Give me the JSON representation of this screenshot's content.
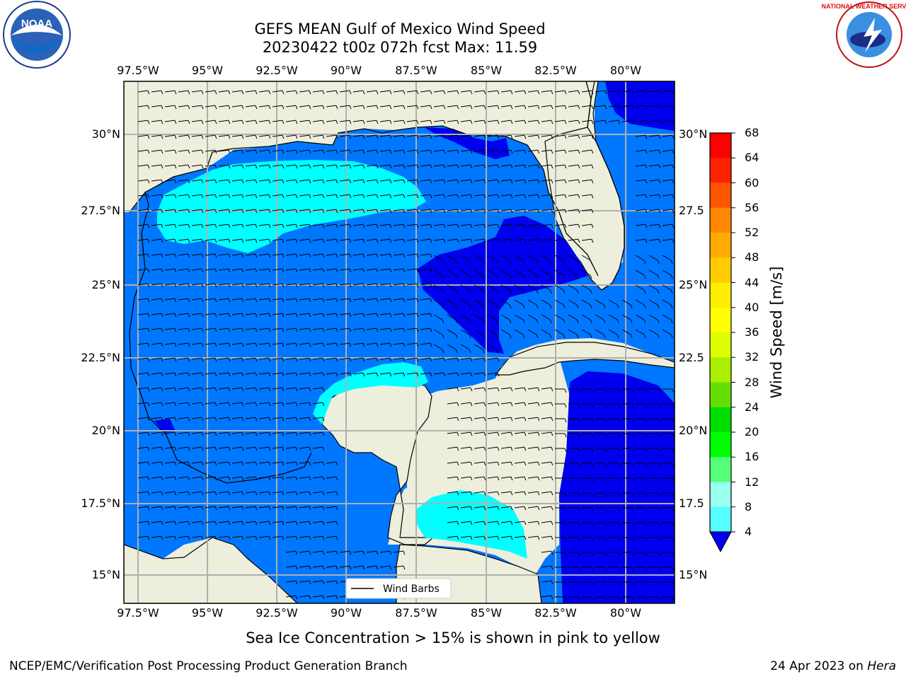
{
  "header": {
    "title_line1": "GEFS MEAN Gulf of Mexico Wind Speed",
    "title_line2": "20230422 t00z 072h fcst   Max: 11.59",
    "logo_left_text": "NOAA",
    "logo_right_text": "NATIONAL WEATHER SERVICE"
  },
  "map": {
    "lon_labels": [
      "97.5°W",
      "95°W",
      "92.5°W",
      "90°W",
      "87.5°W",
      "85°W",
      "82.5°W",
      "80°W"
    ],
    "lat_labels_left": [
      "30°N",
      "27.5°N",
      "25°N",
      "22.5°N",
      "20°N",
      "17.5°N",
      "15°N"
    ],
    "lat_labels_right": [
      "30°N",
      "27.5",
      "25°N",
      "22.5",
      "20°N",
      "17.5",
      "15°N"
    ],
    "legend_label": "Wind Barbs",
    "colors": {
      "land": "#eeeedd",
      "speed_4_8": "#0077ff",
      "speed_below_4": "#0000ee",
      "speed_8_12": "#00ffff",
      "speed_12_16": "#33ffff"
    }
  },
  "colorbar": {
    "label": "Wind Speed [m/s]",
    "ticks": [
      "68",
      "64",
      "60",
      "56",
      "52",
      "48",
      "44",
      "40",
      "36",
      "32",
      "28",
      "24",
      "20",
      "16",
      "12",
      "8",
      "4"
    ],
    "colors": [
      "#ff0000",
      "#ff2200",
      "#ff5500",
      "#ff8800",
      "#ffaa00",
      "#ffcc00",
      "#ffee00",
      "#ffff00",
      "#ddff00",
      "#aaee00",
      "#66dd00",
      "#00dd00",
      "#00ff00",
      "#55ff77",
      "#99ffee",
      "#55ffff",
      "#00ffff",
      "#0077ff"
    ],
    "under_color": "#0000ee"
  },
  "footer": {
    "note": "Sea Ice Concentration > 15% is shown in pink to yellow",
    "branch": "NCEP/EMC/Verification Post Processing Product Generation Branch",
    "date": "24 Apr 2023 on ",
    "system": "Hera"
  }
}
